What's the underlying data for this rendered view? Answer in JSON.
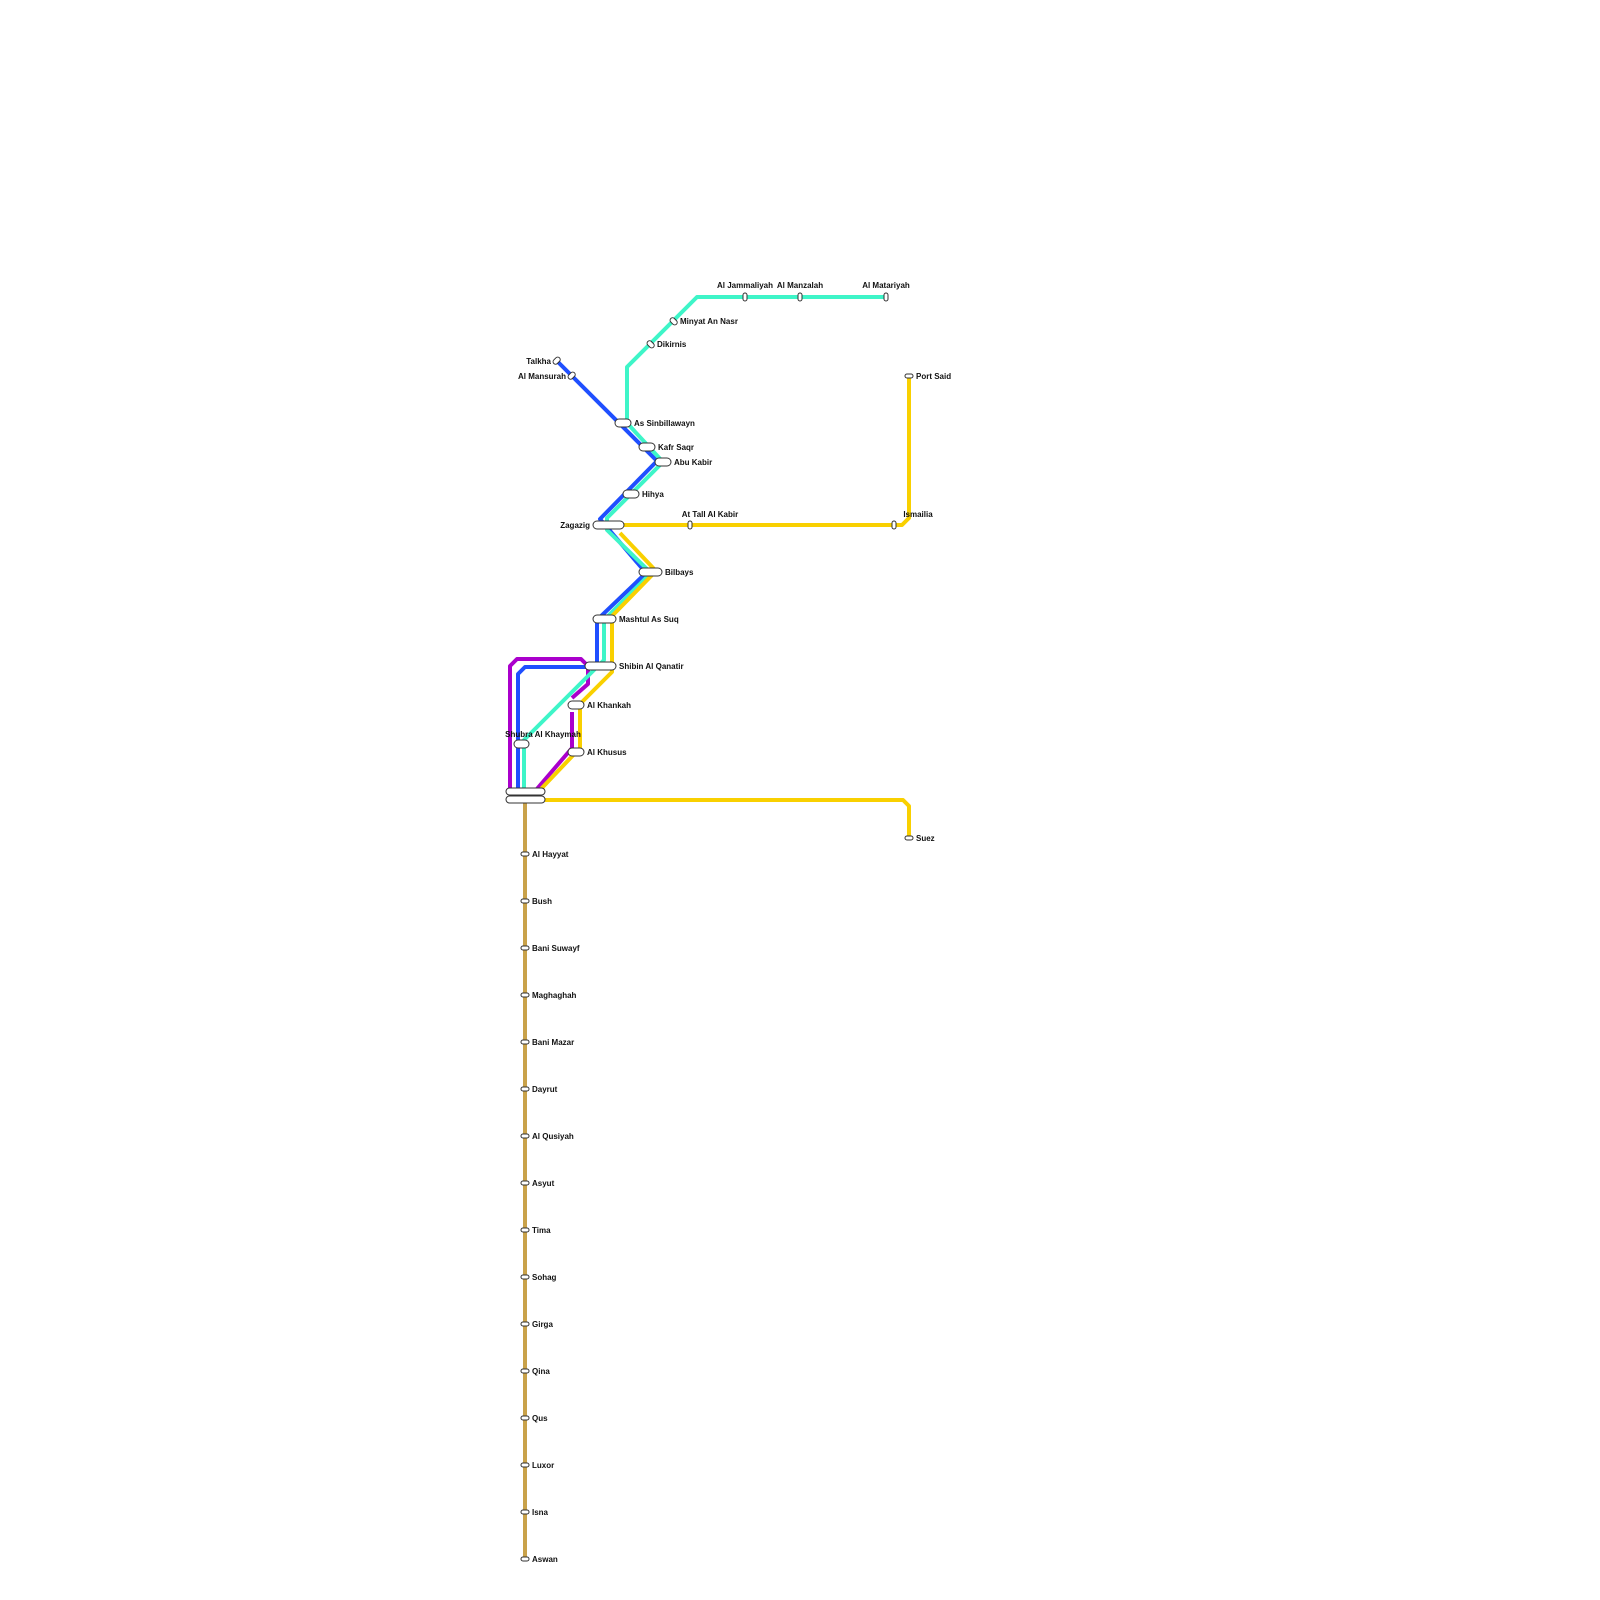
{
  "lines": {
    "teal": "#3ef5c8",
    "blue": "#1f4fff",
    "yellow": "#f9d000",
    "purple": "#aa00cc",
    "tan": "#c9a24a"
  },
  "stations": {
    "talkha": "Talkha",
    "mansurah": "Al Mansurah",
    "sinbillawayn": "As Sinbillawayn",
    "kafr_saqr": "Kafr Saqr",
    "abu_kabir": "Abu Kabir",
    "hihya": "Hihya",
    "zagazig": "Zagazig",
    "tall_al_kabir": "At Tall Al Kabir",
    "ismailia": "Ismailia",
    "port_said": "Port Said",
    "bilbays": "Bilbays",
    "mashtul": "Mashtul As Suq",
    "shibin": "Shibin Al Qanatir",
    "khankah": "Al Khankah",
    "khusus": "Al Khusus",
    "shubra": "Shubra Al Khaymah",
    "suez": "Suez",
    "dikirnis": "Dikirnis",
    "minyat": "Minyat An Nasr",
    "jammaliyah": "Al Jammaliyah",
    "manzalah": "Al Manzalah",
    "matariyah": "Al Matariyah",
    "hayyat": "Al Hayyat",
    "bush": "Bush",
    "bani_suwayf": "Bani Suwayf",
    "maghaghah": "Maghaghah",
    "bani_mazar": "Bani Mazar",
    "dayrut": "Dayrut",
    "qusiyah": "Al Qusiyah",
    "asyut": "Asyut",
    "tima": "Tima",
    "sohag": "Sohag",
    "girga": "Girga",
    "qina": "Qina",
    "qus": "Qus",
    "luxor": "Luxor",
    "isna": "Isna",
    "aswan": "Aswan"
  }
}
